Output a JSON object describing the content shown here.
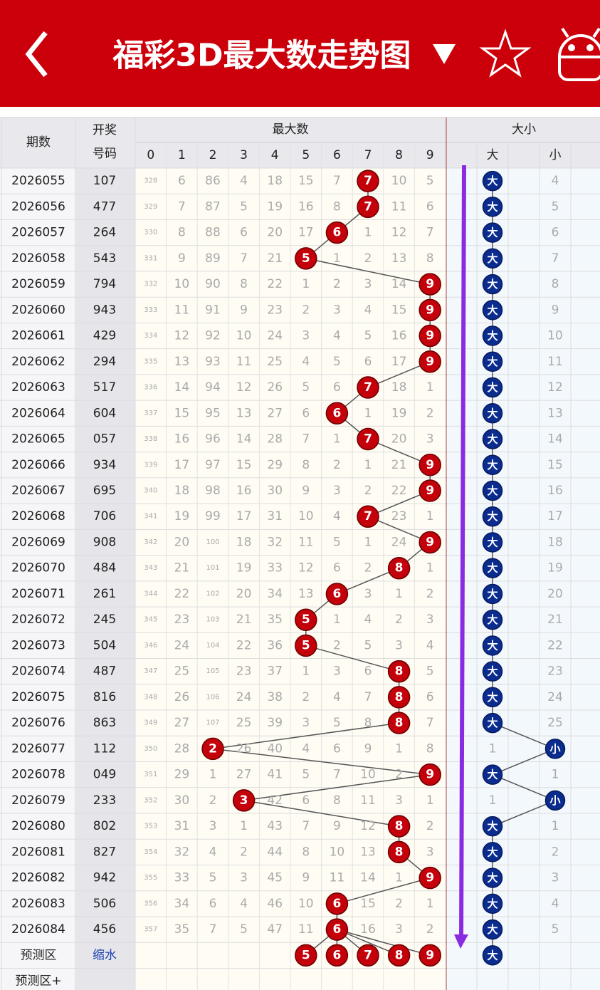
{
  "header": {
    "title": "福彩3D最大数走势图"
  },
  "table": {
    "head": {
      "period": "期数",
      "number": [
        "开奖",
        "号码"
      ],
      "max": "最大数",
      "digits": [
        0,
        1,
        2,
        3,
        4,
        5,
        6,
        7,
        8,
        9
      ],
      "size": "大小",
      "size_cols": [
        "大",
        "小"
      ]
    },
    "rows": [
      {
        "period": "2026055",
        "number": "107",
        "cells": [
          328,
          6,
          86,
          4,
          18,
          15,
          7,
          {
            "ball": 7
          },
          10,
          5
        ],
        "size": [
          {
            "ball": "大"
          },
          4
        ]
      },
      {
        "period": "2026056",
        "number": "477",
        "cells": [
          329,
          7,
          87,
          5,
          19,
          16,
          8,
          {
            "ball": 7
          },
          11,
          6
        ],
        "size": [
          {
            "ball": "大"
          },
          5
        ]
      },
      {
        "period": "2026057",
        "number": "264",
        "cells": [
          330,
          8,
          88,
          6,
          20,
          17,
          {
            "ball": 6
          },
          1,
          12,
          7
        ],
        "size": [
          {
            "ball": "大"
          },
          6
        ]
      },
      {
        "period": "2026058",
        "number": "543",
        "cells": [
          331,
          9,
          89,
          7,
          21,
          {
            "ball": 5
          },
          1,
          2,
          13,
          8
        ],
        "size": [
          {
            "ball": "大"
          },
          7
        ]
      },
      {
        "period": "2026059",
        "number": "794",
        "cells": [
          332,
          10,
          90,
          8,
          22,
          1,
          2,
          3,
          14,
          {
            "ball": 9
          }
        ],
        "size": [
          {
            "ball": "大"
          },
          8
        ]
      },
      {
        "period": "2026060",
        "number": "943",
        "cells": [
          333,
          11,
          91,
          9,
          23,
          2,
          3,
          4,
          15,
          {
            "ball": 9
          }
        ],
        "size": [
          {
            "ball": "大"
          },
          9
        ]
      },
      {
        "period": "2026061",
        "number": "429",
        "cells": [
          334,
          12,
          92,
          10,
          24,
          3,
          4,
          5,
          16,
          {
            "ball": 9
          }
        ],
        "size": [
          {
            "ball": "大"
          },
          10
        ]
      },
      {
        "period": "2026062",
        "number": "294",
        "cells": [
          335,
          13,
          93,
          11,
          25,
          4,
          5,
          6,
          17,
          {
            "ball": 9
          }
        ],
        "size": [
          {
            "ball": "大"
          },
          11
        ]
      },
      {
        "period": "2026063",
        "number": "517",
        "cells": [
          336,
          14,
          94,
          12,
          26,
          5,
          6,
          {
            "ball": 7
          },
          18,
          1
        ],
        "size": [
          {
            "ball": "大"
          },
          12
        ]
      },
      {
        "period": "2026064",
        "number": "604",
        "cells": [
          337,
          15,
          95,
          13,
          27,
          6,
          {
            "ball": 6
          },
          1,
          19,
          2
        ],
        "size": [
          {
            "ball": "大"
          },
          13
        ]
      },
      {
        "period": "2026065",
        "number": "057",
        "cells": [
          338,
          16,
          96,
          14,
          28,
          7,
          1,
          {
            "ball": 7
          },
          20,
          3
        ],
        "size": [
          {
            "ball": "大"
          },
          14
        ]
      },
      {
        "period": "2026066",
        "number": "934",
        "cells": [
          339,
          17,
          97,
          15,
          29,
          8,
          2,
          1,
          21,
          {
            "ball": 9
          }
        ],
        "size": [
          {
            "ball": "大"
          },
          15
        ]
      },
      {
        "period": "2026067",
        "number": "695",
        "cells": [
          340,
          18,
          98,
          16,
          30,
          9,
          3,
          2,
          22,
          {
            "ball": 9
          }
        ],
        "size": [
          {
            "ball": "大"
          },
          16
        ]
      },
      {
        "period": "2026068",
        "number": "706",
        "cells": [
          341,
          19,
          99,
          17,
          31,
          10,
          4,
          {
            "ball": 7
          },
          23,
          1
        ],
        "size": [
          {
            "ball": "大"
          },
          17
        ]
      },
      {
        "period": "2026069",
        "number": "908",
        "cells": [
          342,
          20,
          100,
          18,
          32,
          11,
          5,
          1,
          24,
          {
            "ball": 9
          }
        ],
        "size": [
          {
            "ball": "大"
          },
          18
        ]
      },
      {
        "period": "2026070",
        "number": "484",
        "cells": [
          343,
          21,
          101,
          19,
          33,
          12,
          6,
          2,
          {
            "ball": 8
          },
          1
        ],
        "size": [
          {
            "ball": "大"
          },
          19
        ]
      },
      {
        "period": "2026071",
        "number": "261",
        "cells": [
          344,
          22,
          102,
          20,
          34,
          13,
          {
            "ball": 6
          },
          3,
          1,
          2
        ],
        "size": [
          {
            "ball": "大"
          },
          20
        ]
      },
      {
        "period": "2026072",
        "number": "245",
        "cells": [
          345,
          23,
          103,
          21,
          35,
          {
            "ball": 5
          },
          1,
          4,
          2,
          3
        ],
        "size": [
          {
            "ball": "大"
          },
          21
        ]
      },
      {
        "period": "2026073",
        "number": "504",
        "cells": [
          346,
          24,
          104,
          22,
          36,
          {
            "ball": 5
          },
          2,
          5,
          3,
          4
        ],
        "size": [
          {
            "ball": "大"
          },
          22
        ]
      },
      {
        "period": "2026074",
        "number": "487",
        "cells": [
          347,
          25,
          105,
          23,
          37,
          1,
          3,
          6,
          {
            "ball": 8
          },
          5
        ],
        "size": [
          {
            "ball": "大"
          },
          23
        ]
      },
      {
        "period": "2026075",
        "number": "816",
        "cells": [
          348,
          26,
          106,
          24,
          38,
          2,
          4,
          7,
          {
            "ball": 8
          },
          6
        ],
        "size": [
          {
            "ball": "大"
          },
          24
        ]
      },
      {
        "period": "2026076",
        "number": "863",
        "cells": [
          349,
          27,
          107,
          25,
          39,
          3,
          5,
          8,
          {
            "ball": 8
          },
          7
        ],
        "size": [
          {
            "ball": "大"
          },
          25
        ]
      },
      {
        "period": "2026077",
        "number": "112",
        "cells": [
          350,
          28,
          {
            "ball": 2
          },
          26,
          40,
          4,
          6,
          9,
          1,
          8
        ],
        "size": [
          1,
          {
            "ball": "小"
          }
        ]
      },
      {
        "period": "2026078",
        "number": "049",
        "cells": [
          351,
          29,
          1,
          27,
          41,
          5,
          7,
          10,
          2,
          {
            "ball": 9
          }
        ],
        "size": [
          {
            "ball": "大"
          },
          1
        ]
      },
      {
        "period": "2026079",
        "number": "233",
        "cells": [
          352,
          30,
          2,
          {
            "ball": 3
          },
          42,
          6,
          8,
          11,
          3,
          1
        ],
        "size": [
          1,
          {
            "ball": "小"
          }
        ]
      },
      {
        "period": "2026080",
        "number": "802",
        "cells": [
          353,
          31,
          3,
          1,
          43,
          7,
          9,
          12,
          {
            "ball": 8
          },
          2
        ],
        "size": [
          {
            "ball": "大"
          },
          1
        ]
      },
      {
        "period": "2026081",
        "number": "827",
        "cells": [
          354,
          32,
          4,
          2,
          44,
          8,
          10,
          13,
          {
            "ball": 8
          },
          3
        ],
        "size": [
          {
            "ball": "大"
          },
          2
        ]
      },
      {
        "period": "2026082",
        "number": "942",
        "cells": [
          355,
          33,
          5,
          3,
          45,
          9,
          11,
          14,
          1,
          {
            "ball": 9
          }
        ],
        "size": [
          {
            "ball": "大"
          },
          3
        ]
      },
      {
        "period": "2026083",
        "number": "506",
        "cells": [
          356,
          34,
          6,
          4,
          46,
          10,
          {
            "ball": 6
          },
          15,
          2,
          1
        ],
        "size": [
          {
            "ball": "大"
          },
          4
        ]
      },
      {
        "period": "2026084",
        "number": "456",
        "cells": [
          357,
          35,
          7,
          5,
          47,
          11,
          {
            "ball": 6
          },
          16,
          3,
          2
        ],
        "size": [
          {
            "ball": "大"
          },
          5
        ]
      }
    ],
    "predict": {
      "period": "预测区",
      "number": "缩水",
      "balls": [
        5,
        6,
        7,
        8,
        9
      ],
      "size": "大"
    },
    "predict_plus": {
      "period": "预测区+"
    }
  }
}
